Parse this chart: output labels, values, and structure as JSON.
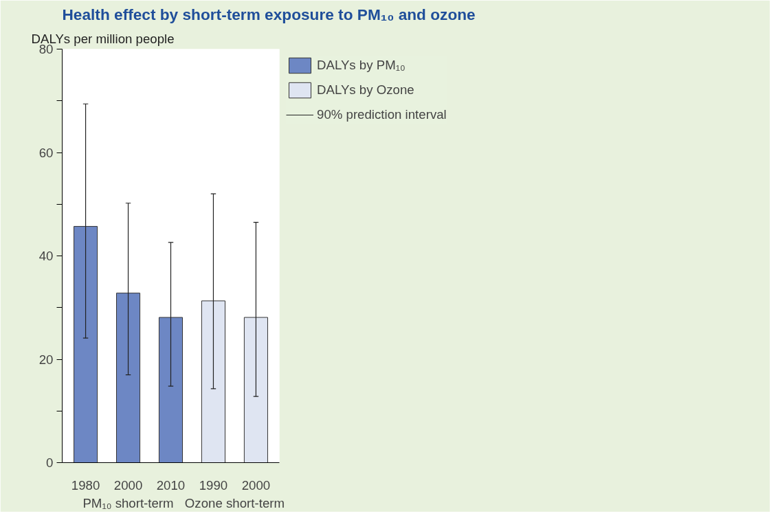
{
  "chart_data": {
    "type": "bar",
    "title": "Health effect by short-term exposure to PM₁₀ and ozone",
    "ylabel": "DALYs per million people",
    "categories": [
      "1980",
      "2000",
      "2010",
      "1990",
      "2000"
    ],
    "series": [
      {
        "name": "DALYs by PM₁₀",
        "color": "#6d87c4",
        "values": [
          45.7,
          32.8,
          28.1,
          null,
          null
        ],
        "errors": [
          [
            24.1,
            69.4
          ],
          [
            17.0,
            50.2
          ],
          [
            14.8,
            42.6
          ],
          null,
          null
        ]
      },
      {
        "name": "DALYs by Ozone",
        "color": "#dfe5f2",
        "values": [
          null,
          null,
          null,
          31.3,
          28.1
        ],
        "errors": [
          null,
          null,
          null,
          [
            14.3,
            52.0
          ],
          [
            12.8,
            46.5
          ]
        ]
      }
    ],
    "annotations": [
      "PM₁₀ short-term",
      "Ozone short-term",
      "90% prediction interval"
    ],
    "ylim": [
      0,
      80
    ],
    "yticks": [
      0,
      {
        "value": 10,
        "label": null
      },
      20,
      {
        "value": 30,
        "label": null
      },
      40,
      {
        "value": 50,
        "label": null
      },
      60,
      {
        "value": 70,
        "label": null
      },
      80
    ],
    "grid": false,
    "legend": "top right"
  }
}
